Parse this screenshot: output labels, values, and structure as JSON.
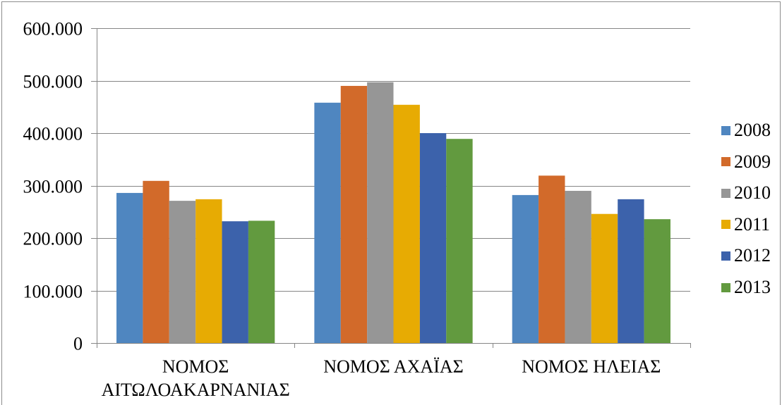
{
  "chart_data": {
    "type": "bar",
    "categories": [
      "ΝΟΜΟΣ ΑΙΤΩΛΟΑΚΑΡΝΑΝΙΑΣ",
      "ΝΟΜΟΣ ΑΧΑΪΑΣ",
      "ΝΟΜΟΣ ΗΛΕΙΑΣ"
    ],
    "series": [
      {
        "name": "2008",
        "color": "#4F86C0",
        "values": [
          286000,
          458000,
          282000
        ]
      },
      {
        "name": "2009",
        "color": "#D26A2A",
        "values": [
          309000,
          490000,
          319000
        ]
      },
      {
        "name": "2010",
        "color": "#969696",
        "values": [
          271000,
          497000,
          290000
        ]
      },
      {
        "name": "2011",
        "color": "#E7AB03",
        "values": [
          274000,
          454000,
          246000
        ]
      },
      {
        "name": "2012",
        "color": "#3C62AB",
        "values": [
          232000,
          400000,
          274000
        ]
      },
      {
        "name": "2013",
        "color": "#629A3F",
        "values": [
          233000,
          389000,
          236000
        ]
      }
    ],
    "ylim": [
      0,
      600000
    ],
    "yticks": [
      0,
      100000,
      200000,
      300000,
      400000,
      500000,
      600000
    ],
    "ytick_labels": [
      "0",
      "100.000",
      "200.000",
      "300.000",
      "400.000",
      "500.000",
      "600.000"
    ],
    "grid": true,
    "legend": "right"
  }
}
